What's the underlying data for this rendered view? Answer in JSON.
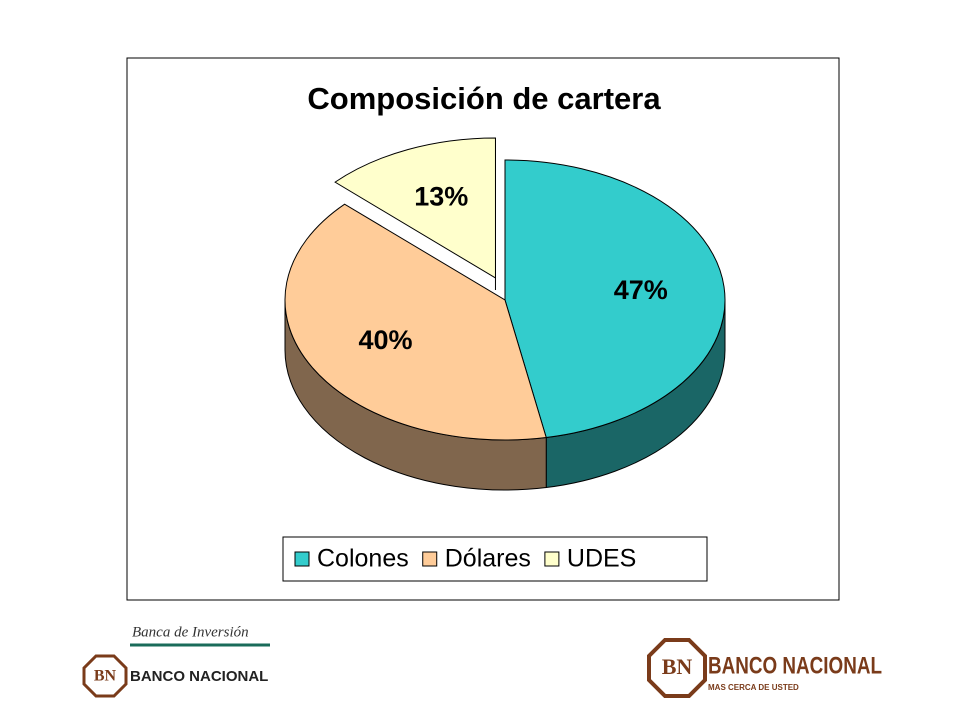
{
  "chart_data": {
    "type": "pie",
    "title": "Composición de cartera",
    "categories": [
      "Colones",
      "Dólares",
      "UDES"
    ],
    "values": [
      47,
      40,
      13
    ],
    "value_labels": [
      "47%",
      "40%",
      "13%"
    ],
    "colors": [
      "#33CCCC",
      "#FFCC99",
      "#FFFFCC"
    ],
    "exploded": [
      false,
      false,
      true
    ],
    "legend": "bottom"
  },
  "branding": {
    "left_tagline": "Banca de Inversión",
    "left_name": "BANCO NACIONAL",
    "monogram": "BN",
    "right_name": "BANCO NACIONAL",
    "right_slogan": "MAS CERCA DE USTED"
  }
}
